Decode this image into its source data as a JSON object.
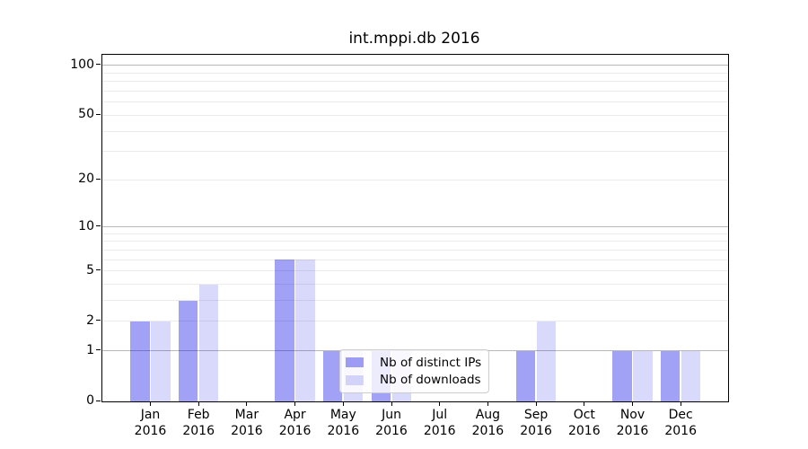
{
  "chart_data": {
    "type": "bar",
    "title": "int.mppi.db 2016",
    "categories": [
      "Jan",
      "Feb",
      "Mar",
      "Apr",
      "May",
      "Jun",
      "Jul",
      "Aug",
      "Sep",
      "Oct",
      "Nov",
      "Dec"
    ],
    "category_year": "2016",
    "series": [
      {
        "name": "Nb of distinct IPs",
        "color": "rgba(0,0,230,0.37)",
        "values": [
          2,
          3,
          0,
          6,
          1,
          1,
          0,
          0,
          1,
          0,
          1,
          1
        ]
      },
      {
        "name": "Nb of downloads",
        "color": "rgba(0,0,230,0.15)",
        "values": [
          2,
          4,
          0,
          6,
          1,
          1,
          0,
          0,
          2,
          0,
          1,
          1
        ]
      }
    ],
    "xlabel": "",
    "ylabel": "",
    "y_scale": "log10(1+x)",
    "ylim": [
      0,
      115
    ],
    "y_major_ticks": [
      0,
      1,
      2,
      5,
      10,
      20,
      50,
      100
    ],
    "y_decade_gridlines": [
      1,
      10,
      100
    ],
    "y_minor_gridlines": [
      2,
      3,
      4,
      5,
      6,
      7,
      8,
      9,
      20,
      30,
      40,
      50,
      60,
      70,
      80,
      90
    ],
    "grid": true,
    "legend_position": "lower center inside plot",
    "colors": {
      "axis": "#000000",
      "text": "#000000",
      "decade_grid": "#b8b8b8",
      "minor_grid": "#ebebeb",
      "legend_border": "#cccccc",
      "legend_background": "rgba(255,255,255,0.8)"
    }
  }
}
